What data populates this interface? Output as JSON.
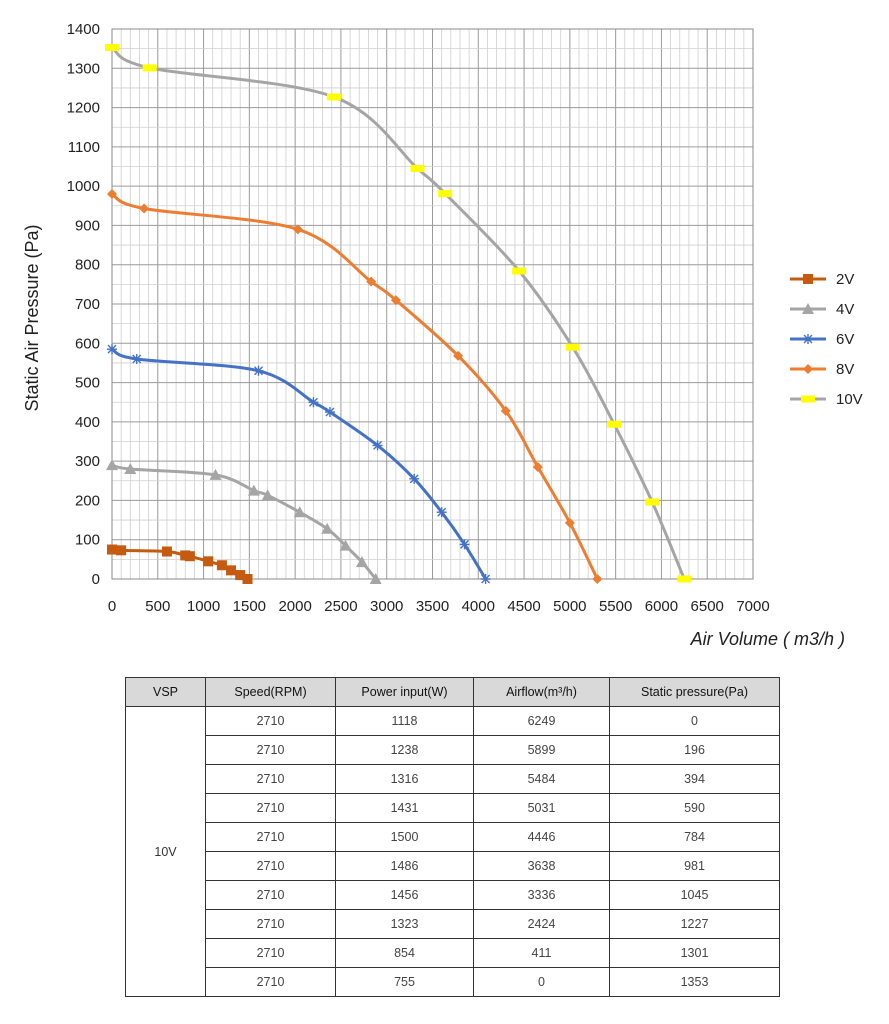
{
  "chart_data": {
    "type": "line",
    "xlabel": "Air Volume ( m3/h )",
    "ylabel": "Static Air Pressure  (Pa)",
    "xlim": [
      0,
      7000
    ],
    "ylim": [
      0,
      1400
    ],
    "x_ticks": [
      "0",
      "500",
      "1000",
      "1500",
      "2000",
      "2500",
      "3000",
      "3500",
      "4000",
      "4500",
      "5000",
      "5500",
      "6000",
      "6500",
      "7000"
    ],
    "y_ticks": [
      "0",
      "100",
      "200",
      "300",
      "400",
      "500",
      "600",
      "700",
      "800",
      "900",
      "1000",
      "1100",
      "1200",
      "1300",
      "1400"
    ],
    "grid": true,
    "legend_position": "right",
    "series": [
      {
        "name": "2V",
        "color": "#c55a11",
        "marker": "square",
        "x": [
          0,
          100,
          600,
          800,
          850,
          1050,
          1200,
          1300,
          1400,
          1480
        ],
        "y": [
          75,
          73,
          70,
          60,
          58,
          45,
          35,
          22,
          10,
          0
        ]
      },
      {
        "name": "4V",
        "color": "#a5a5a5",
        "marker": "triangle",
        "x": [
          0,
          200,
          1130,
          1550,
          1700,
          2050,
          2350,
          2550,
          2730,
          2880
        ],
        "y": [
          290,
          280,
          265,
          225,
          213,
          170,
          128,
          85,
          43,
          0
        ]
      },
      {
        "name": "6V",
        "color": "#4472c4",
        "marker": "asterisk",
        "x": [
          0,
          270,
          1600,
          2200,
          2380,
          2900,
          3300,
          3600,
          3850,
          4080
        ],
        "y": [
          585,
          560,
          530,
          450,
          425,
          340,
          255,
          170,
          88,
          0
        ]
      },
      {
        "name": "8V",
        "color": "#ed7d31",
        "marker": "diamond",
        "x": [
          0,
          350,
          2030,
          2830,
          3100,
          3780,
          4300,
          4650,
          5000,
          5300
        ],
        "y": [
          980,
          943,
          890,
          757,
          710,
          568,
          428,
          285,
          143,
          0
        ]
      },
      {
        "name": "10V",
        "color": "#a5a5a5",
        "marker": "yellow-dash",
        "marker_color": "#ffff00",
        "x": [
          0,
          411,
          2424,
          3336,
          3638,
          4446,
          5031,
          5484,
          5899,
          6249
        ],
        "y": [
          1353,
          1301,
          1227,
          1045,
          981,
          784,
          590,
          394,
          196,
          0
        ]
      }
    ]
  },
  "table": {
    "headers": [
      "VSP",
      "Speed(RPM)",
      "Power input(W)",
      "Airflow(m³/h)",
      "Static pressure(Pa)"
    ],
    "vsp": "10V",
    "rows": [
      [
        "2710",
        "1118",
        "6249",
        "0"
      ],
      [
        "2710",
        "1238",
        "5899",
        "196"
      ],
      [
        "2710",
        "1316",
        "5484",
        "394"
      ],
      [
        "2710",
        "1431",
        "5031",
        "590"
      ],
      [
        "2710",
        "1500",
        "4446",
        "784"
      ],
      [
        "2710",
        "1486",
        "3638",
        "981"
      ],
      [
        "2710",
        "1456",
        "3336",
        "1045"
      ],
      [
        "2710",
        "1323",
        "2424",
        "1227"
      ],
      [
        "2710",
        "854",
        "411",
        "1301"
      ],
      [
        "2710",
        "755",
        "0",
        "1353"
      ]
    ]
  }
}
